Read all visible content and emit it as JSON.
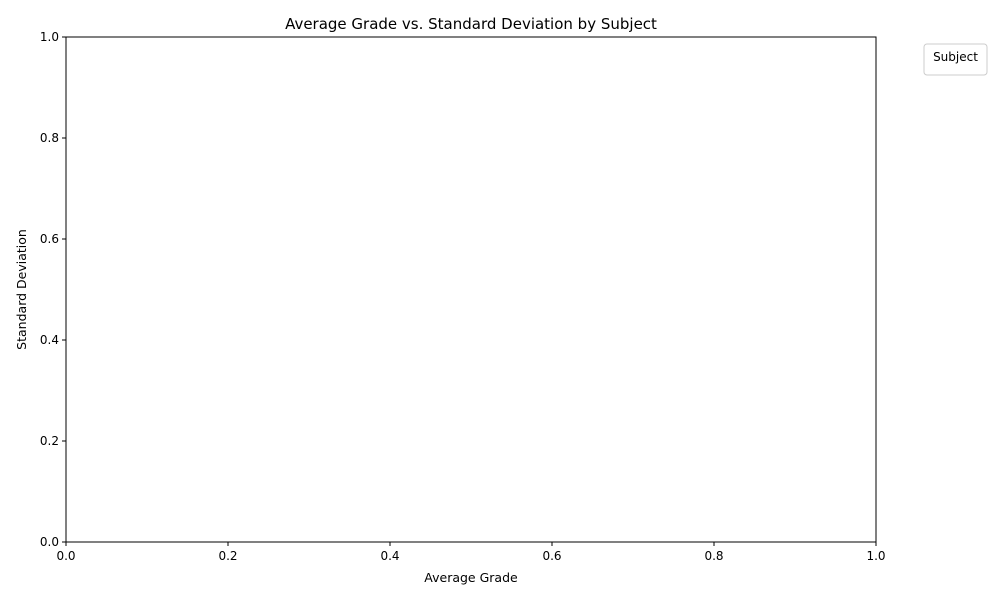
{
  "chart_data": {
    "type": "scatter",
    "title": "Average Grade vs. Standard Deviation by Subject",
    "xlabel": "Average Grade",
    "ylabel": "Standard Deviation",
    "xlim": [
      0.0,
      1.0
    ],
    "ylim": [
      0.0,
      1.0
    ],
    "xticks": [
      "0.0",
      "0.2",
      "0.4",
      "0.6",
      "0.8",
      "1.0"
    ],
    "yticks": [
      "0.0",
      "0.2",
      "0.4",
      "0.6",
      "0.8",
      "1.0"
    ],
    "grid": false,
    "legend": {
      "title": "Subject",
      "placement": "outside-top-right",
      "entries": []
    },
    "series": []
  }
}
